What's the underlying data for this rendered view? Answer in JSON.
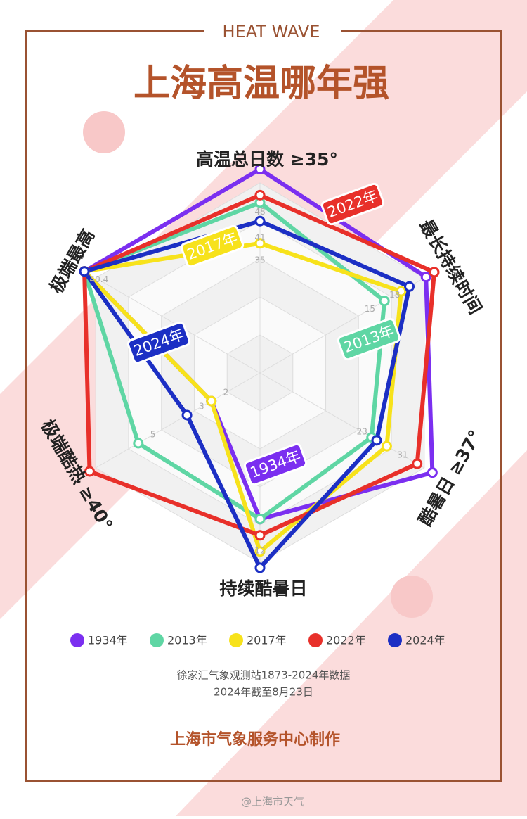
{
  "header": {
    "tag": "HEAT WAVE",
    "title": "上海高温哪年强"
  },
  "chart_data": {
    "type": "radar",
    "axes": [
      {
        "name": "高温总日数 ≥35°",
        "rlim": [
          0,
          57
        ]
      },
      {
        "name": "最长持续时间",
        "rlim": [
          0,
          22
        ]
      },
      {
        "name": "酷暑日 ≥37°",
        "rlim": [
          0,
          36
        ]
      },
      {
        "name": "持续酷暑日",
        "rlim": [
          0,
          13
        ]
      },
      {
        "name": "极端酷热 ≥40°",
        "rlim": [
          0,
          7.5
        ]
      },
      {
        "name": "极端最高",
        "rlim": [
          0,
          42
        ]
      }
    ],
    "series": [
      {
        "name": "1934年",
        "color": "#7b2ff0",
        "values": [
          55,
          20,
          34,
          9,
          2,
          40.4
        ],
        "value_labels": [
          null,
          null,
          null,
          null,
          "2",
          null
        ]
      },
      {
        "name": "2013年",
        "color": "#5fd6a4",
        "values": [
          46,
          15,
          22,
          9,
          5,
          40.4
        ],
        "value_labels": [
          null,
          "15",
          null,
          null,
          "5",
          null
        ]
      },
      {
        "name": "2017年",
        "color": "#f7e21b",
        "values": [
          35,
          17,
          25,
          11,
          2,
          40.4
        ],
        "value_labels": [
          "35",
          null,
          null,
          null,
          null,
          null
        ]
      },
      {
        "name": "2022年",
        "color": "#e8302a",
        "values": [
          48,
          21,
          31,
          10,
          7,
          40.4
        ],
        "value_labels": [
          "48",
          null,
          "31",
          null,
          null,
          "40.4"
        ]
      },
      {
        "name": "2024年",
        "color": "#1c2fc4",
        "values": [
          41,
          18,
          23,
          12,
          3,
          40.4
        ],
        "value_labels": [
          "41",
          "18",
          "23",
          "12",
          "3",
          null
        ]
      }
    ]
  },
  "footer": {
    "source": "徐家汇气象观测站1873-2024年数据",
    "note": "2024年截至8月23日",
    "credit": "上海市气象服务中心制作",
    "watermark": "@上海市天气"
  }
}
